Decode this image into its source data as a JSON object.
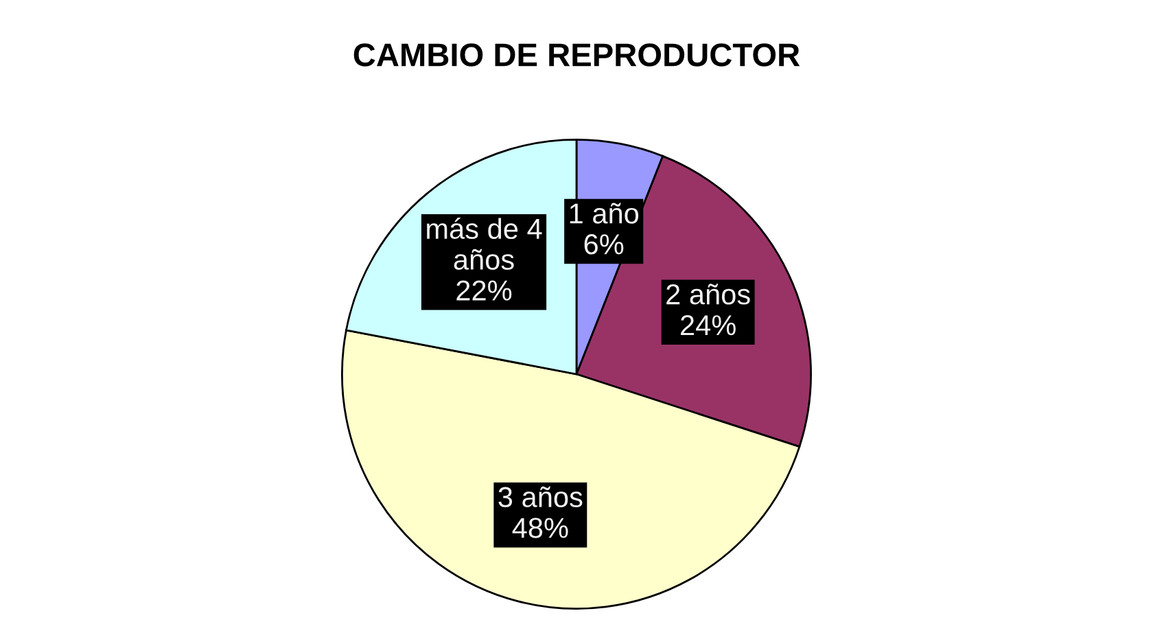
{
  "chart_data": {
    "type": "pie",
    "title": "CAMBIO DE REPRODUCTOR",
    "categories": [
      "1 año",
      "2 años",
      "3 años",
      "más de 4 años"
    ],
    "values": [
      6,
      24,
      48,
      22
    ],
    "colors": [
      "#9999ff",
      "#993366",
      "#ffffcc",
      "#ccffff"
    ],
    "value_labels": [
      "6%",
      "24%",
      "48%",
      "22%"
    ]
  }
}
